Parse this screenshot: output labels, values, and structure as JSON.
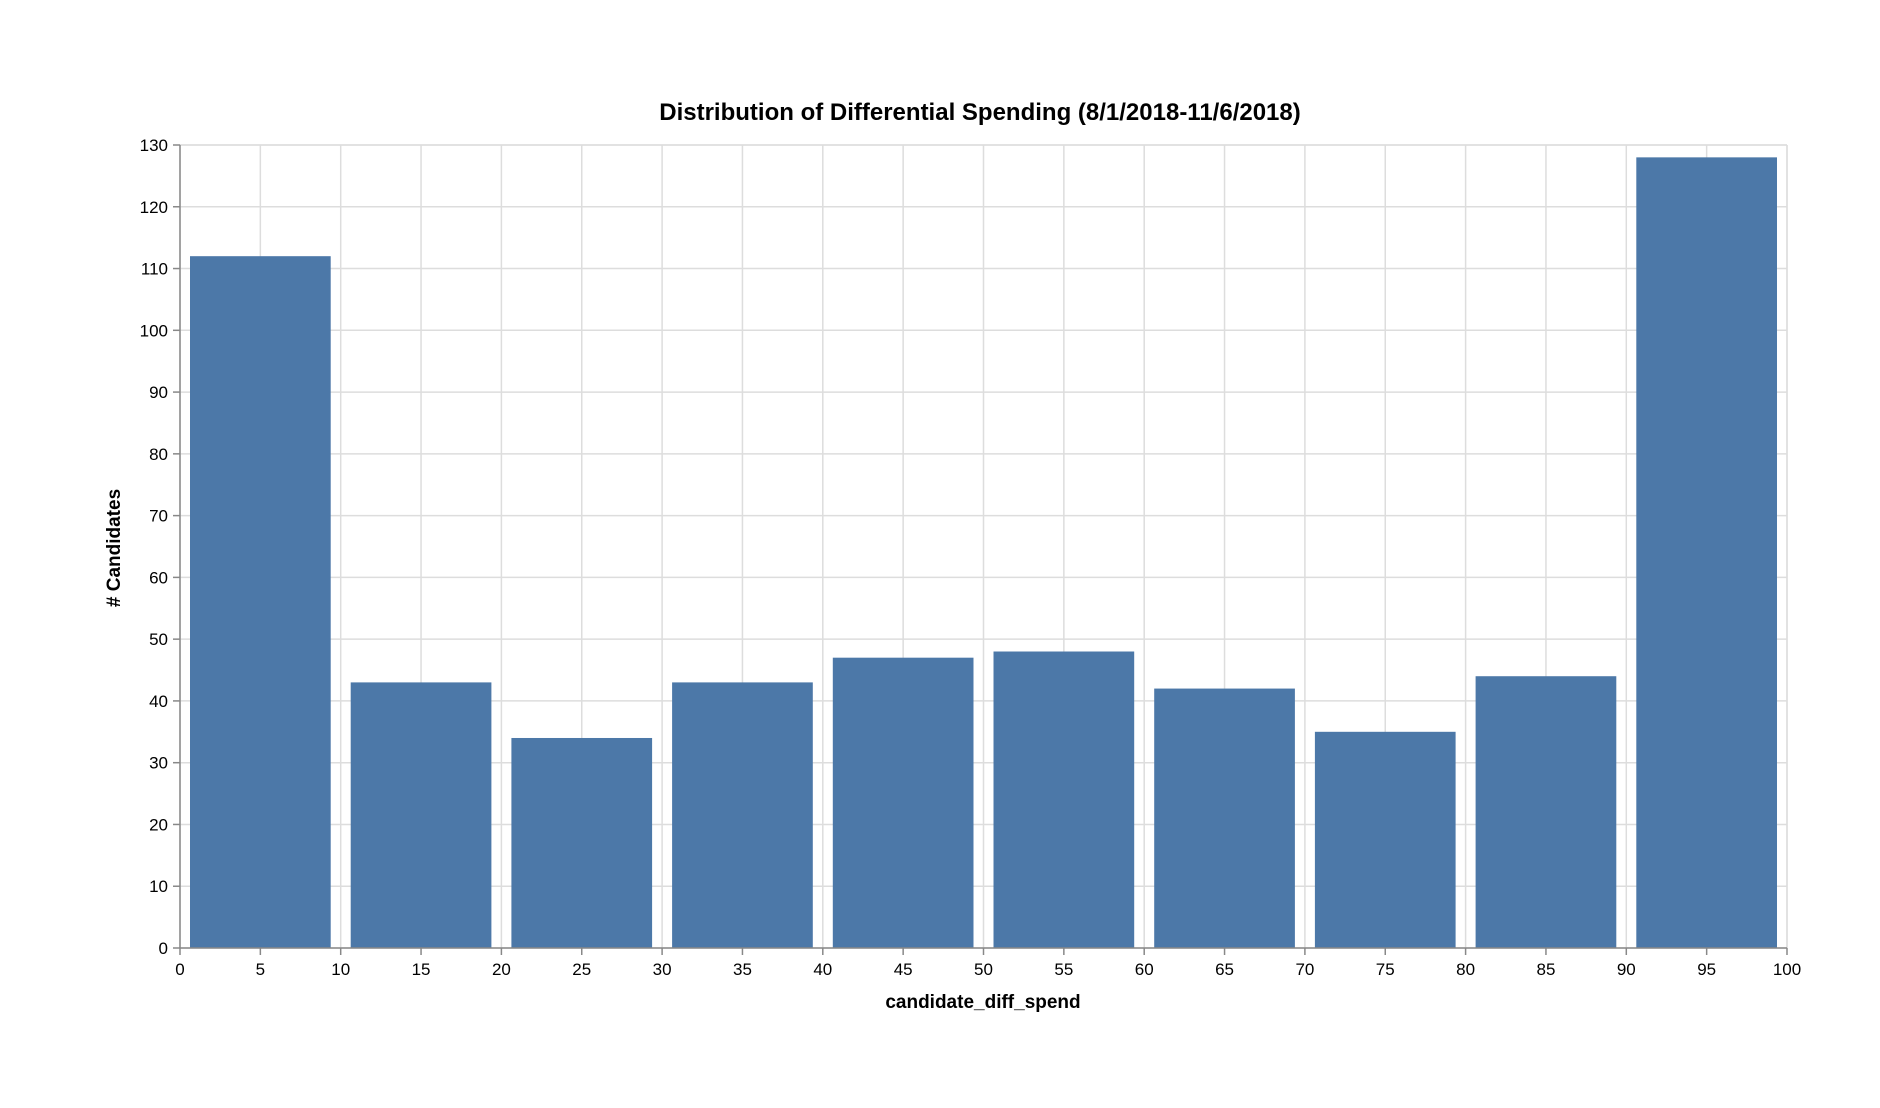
{
  "chart_data": {
    "type": "bar",
    "title": "Distribution of Differential Spending (8/1/2018-11/6/2018)",
    "xlabel": "candidate_diff_spend",
    "ylabel": "# Candidates",
    "bins": [
      {
        "x0": 0,
        "x1": 10,
        "value": 112
      },
      {
        "x0": 10,
        "x1": 20,
        "value": 43
      },
      {
        "x0": 20,
        "x1": 30,
        "value": 34
      },
      {
        "x0": 30,
        "x1": 40,
        "value": 43
      },
      {
        "x0": 40,
        "x1": 50,
        "value": 47
      },
      {
        "x0": 50,
        "x1": 60,
        "value": 48
      },
      {
        "x0": 60,
        "x1": 70,
        "value": 42
      },
      {
        "x0": 70,
        "x1": 80,
        "value": 35
      },
      {
        "x0": 80,
        "x1": 90,
        "value": 44
      },
      {
        "x0": 90,
        "x1": 100,
        "value": 128
      }
    ],
    "xlim": [
      0,
      100
    ],
    "ylim": [
      0,
      130
    ],
    "xticks": [
      "0",
      "5",
      "10",
      "15",
      "20",
      "25",
      "30",
      "35",
      "40",
      "45",
      "50",
      "55",
      "60",
      "65",
      "70",
      "75",
      "80",
      "85",
      "90",
      "95",
      "100"
    ],
    "yticks": [
      "0",
      "10",
      "20",
      "30",
      "40",
      "50",
      "60",
      "70",
      "80",
      "90",
      "100",
      "110",
      "120",
      "130"
    ],
    "grid": true,
    "bar_color": "#4c78a8"
  }
}
